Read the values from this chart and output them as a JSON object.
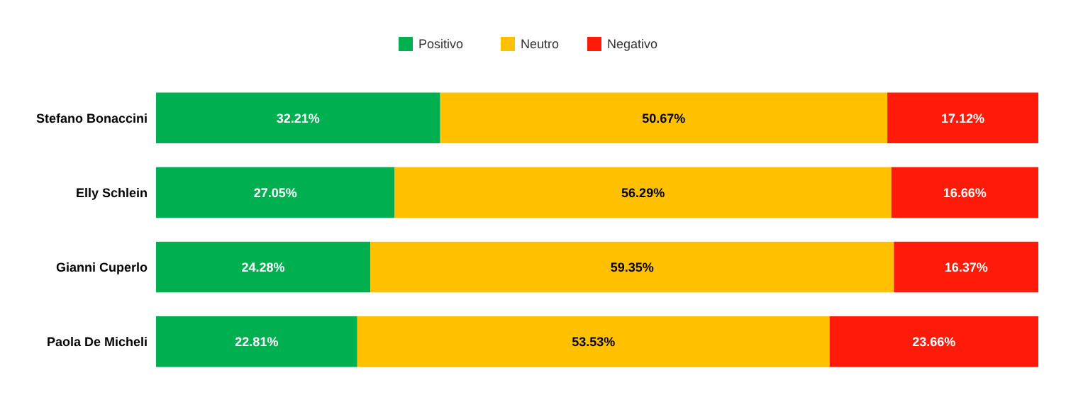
{
  "chart_data": {
    "type": "bar",
    "orientation": "horizontal",
    "stacked": true,
    "categories": [
      "Stefano Bonaccini",
      "Elly Schlein",
      "Gianni Cuperlo",
      "Paola De Micheli"
    ],
    "series": [
      {
        "name": "Positivo",
        "color": "#00b050",
        "values": [
          32.21,
          27.05,
          24.28,
          22.81
        ],
        "value_labels": [
          "32.21%",
          "27.05%",
          "24.28%",
          "22.81%"
        ]
      },
      {
        "name": "Neutro",
        "color": "#ffc000",
        "values": [
          50.67,
          56.29,
          59.35,
          53.53
        ],
        "value_labels": [
          "50.67%",
          "56.29%",
          "59.35%",
          "53.53%"
        ]
      },
      {
        "name": "Negativo",
        "color": "#ff1a0a",
        "values": [
          17.12,
          16.66,
          16.37,
          23.66
        ],
        "value_labels": [
          "17.12%",
          "16.66%",
          "16.37%",
          "23.66%"
        ]
      }
    ],
    "xlim": [
      0,
      100
    ],
    "tick_labels": "y",
    "legend": "top"
  }
}
